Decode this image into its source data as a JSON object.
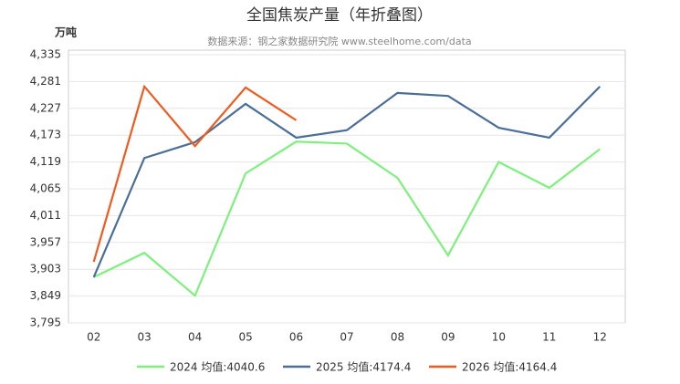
{
  "chart_data": {
    "type": "line",
    "title": "全国焦炭产量（年折叠图）",
    "subtitle": "数据来源：钢之家数据研究院 www.steelhome.com/data",
    "y_label": "万吨",
    "categories": [
      "02",
      "03",
      "04",
      "05",
      "06",
      "07",
      "08",
      "09",
      "10",
      "11",
      "12"
    ],
    "series": [
      {
        "name": "2024 均值:4040.6",
        "color": "#7ef07e",
        "values": [
          3887,
          3936,
          3850,
          4096,
          4160,
          4156,
          4087,
          3931,
          4119,
          4067,
          4145
        ]
      },
      {
        "name": "2025 均值:4174.4",
        "color": "#4a6e96",
        "values": [
          3887,
          4127,
          4159,
          4236,
          4168,
          4183,
          4258,
          4252,
          4188,
          4168,
          4271
        ]
      },
      {
        "name": "2026 均值:4164.4",
        "color": "#f05a1e",
        "values": [
          3918,
          4271,
          4151,
          4269,
          4203,
          null,
          null,
          null,
          null,
          null,
          null
        ]
      }
    ],
    "ylim": [
      3795,
      4335
    ],
    "yticks": [
      {
        "value": 3795,
        "label": "3,795"
      },
      {
        "value": 3849,
        "label": "3,849"
      },
      {
        "value": 3903,
        "label": "3,903"
      },
      {
        "value": 3957,
        "label": "3,957"
      },
      {
        "value": 4011,
        "label": "4,011"
      },
      {
        "value": 4065,
        "label": "4,065"
      },
      {
        "value": 4119,
        "label": "4,119"
      },
      {
        "value": 4173,
        "label": "4,173"
      },
      {
        "value": 4227,
        "label": "4,227"
      },
      {
        "value": 4281,
        "label": "4,281"
      },
      {
        "value": 4335,
        "label": "4,335"
      }
    ],
    "grid": true
  }
}
